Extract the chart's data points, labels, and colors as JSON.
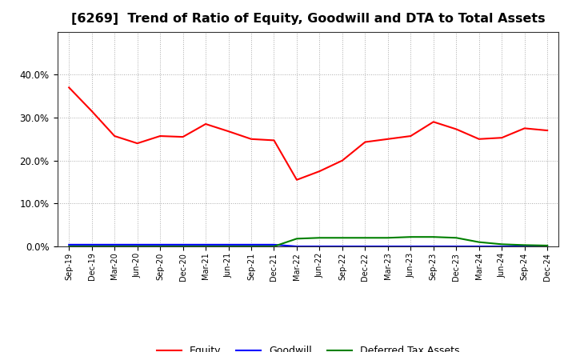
{
  "title": "[6269]  Trend of Ratio of Equity, Goodwill and DTA to Total Assets",
  "x_labels": [
    "Sep-19",
    "Dec-19",
    "Mar-20",
    "Jun-20",
    "Sep-20",
    "Dec-20",
    "Mar-21",
    "Jun-21",
    "Sep-21",
    "Dec-21",
    "Mar-22",
    "Jun-22",
    "Sep-22",
    "Dec-22",
    "Mar-23",
    "Jun-23",
    "Sep-23",
    "Dec-23",
    "Mar-24",
    "Jun-24",
    "Sep-24",
    "Dec-24"
  ],
  "equity": [
    0.37,
    0.315,
    0.257,
    0.24,
    0.257,
    0.255,
    0.285,
    0.268,
    0.25,
    0.247,
    0.155,
    0.175,
    0.2,
    0.243,
    0.25,
    0.257,
    0.29,
    0.273,
    0.25,
    0.253,
    0.275,
    0.27
  ],
  "goodwill": [
    0.004,
    0.004,
    0.004,
    0.004,
    0.004,
    0.004,
    0.004,
    0.004,
    0.004,
    0.004,
    0.0,
    0.0,
    0.0,
    0.0,
    0.0,
    0.0,
    0.0,
    0.0,
    0.0,
    0.0,
    0.0,
    0.0
  ],
  "dta": [
    0.0,
    0.0,
    0.0,
    0.0,
    0.0,
    0.0,
    0.0,
    0.0,
    0.0,
    0.0,
    0.018,
    0.02,
    0.02,
    0.02,
    0.02,
    0.022,
    0.022,
    0.02,
    0.01,
    0.005,
    0.003,
    0.002
  ],
  "equity_color": "#FF0000",
  "goodwill_color": "#0000FF",
  "dta_color": "#008000",
  "legend_labels": [
    "Equity",
    "Goodwill",
    "Deferred Tax Assets"
  ],
  "ylim": [
    0.0,
    0.5
  ],
  "yticks": [
    0.0,
    0.1,
    0.2,
    0.3,
    0.4
  ],
  "background_color": "#FFFFFF",
  "grid_color": "#AAAAAA",
  "title_fontsize": 11.5,
  "title_fontweight": "bold"
}
